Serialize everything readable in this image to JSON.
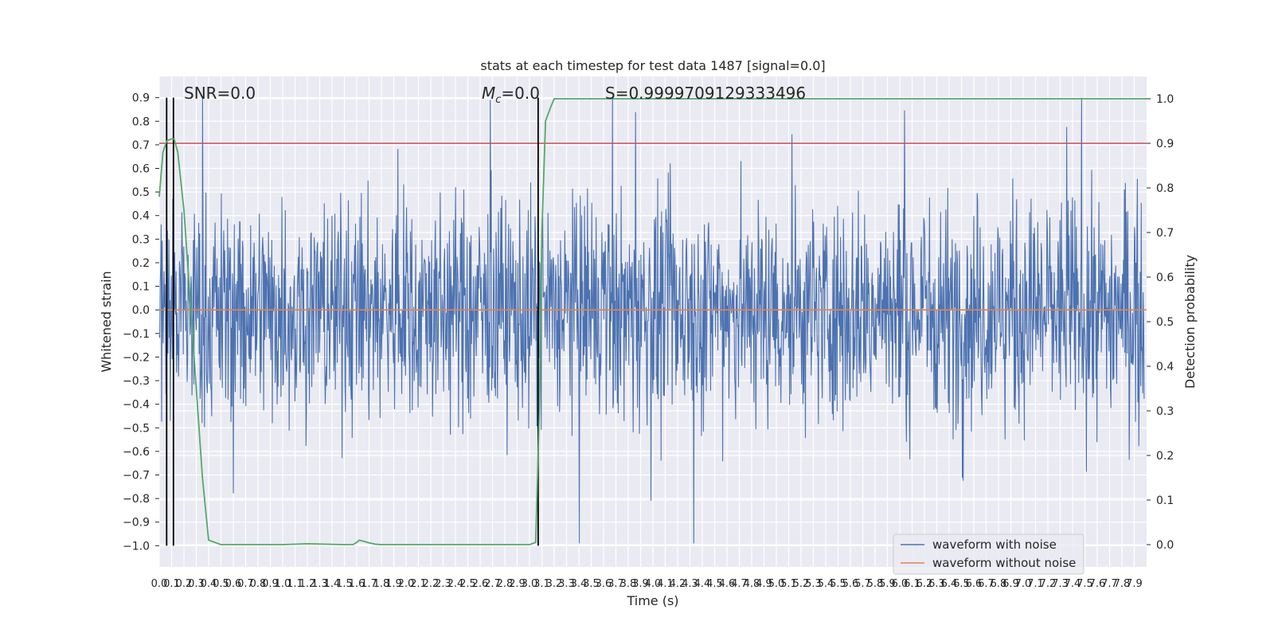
{
  "chart_data": {
    "type": "line",
    "title": "stats at each timestep for test data 1487 [signal=0.0]",
    "xlabel": "Time (s)",
    "ylabel": "Whitened strain",
    "y2label": "Detection probability",
    "xlim": [
      0.0,
      8.0
    ],
    "ylim": [
      -1.09,
      0.99
    ],
    "y2lim": [
      -0.05,
      1.05
    ],
    "x_ticks": [
      0.0,
      0.1,
      0.2,
      0.3,
      0.4,
      0.5,
      0.6,
      0.7,
      0.8,
      0.9,
      1.0,
      1.1,
      1.2,
      1.3,
      1.4,
      1.5,
      1.6,
      1.7,
      1.8,
      1.9,
      2.0,
      2.1,
      2.2,
      2.3,
      2.4,
      2.5,
      2.6,
      2.7,
      2.8,
      2.9,
      3.0,
      3.1,
      3.2,
      3.3,
      3.4,
      3.5,
      3.6,
      3.7,
      3.8,
      3.9,
      4.0,
      4.1,
      4.2,
      4.3,
      4.4,
      4.5,
      4.6,
      4.7,
      4.8,
      4.9,
      5.0,
      5.1,
      5.2,
      5.3,
      5.4,
      5.5,
      5.6,
      5.7,
      5.8,
      5.9,
      6.0,
      6.1,
      6.2,
      6.3,
      6.4,
      6.5,
      6.6,
      6.7,
      6.8,
      6.9,
      7.0,
      7.1,
      7.2,
      7.3,
      7.4,
      7.5,
      7.6,
      7.7,
      7.8,
      7.9
    ],
    "y_ticks": [
      -1.0,
      -0.9,
      -0.8,
      -0.7,
      -0.6,
      -0.5,
      -0.4,
      -0.3,
      -0.2,
      -0.1,
      0.0,
      0.1,
      0.2,
      0.3,
      0.4,
      0.5,
      0.6,
      0.7,
      0.8,
      0.9
    ],
    "y2_ticks": [
      0.0,
      0.1,
      0.2,
      0.3,
      0.4,
      0.5,
      0.6,
      0.7,
      0.8,
      0.9,
      1.0
    ],
    "grid": true,
    "legend_position": "bottom-right",
    "annotations": {
      "snr": "SNR=0.0",
      "mc_symbol": "M",
      "mc_sub": "c",
      "mc_value": "=0.0",
      "s": "S=0.9999709129333496"
    },
    "series": [
      {
        "name": "waveform with noise",
        "color": "#4c72b0",
        "kind": "noise",
        "typical_amplitude": 0.45,
        "peak_max": 0.9,
        "peak_min": -0.99,
        "samples": 2048
      },
      {
        "name": "waveform without noise",
        "color": "#dd8452",
        "kind": "constant",
        "y": 0.0
      },
      {
        "name": "detection probability",
        "color": "#55a868",
        "axis": "right",
        "x": [
          0.0,
          0.03,
          0.06,
          0.1,
          0.12,
          0.15,
          0.2,
          0.25,
          0.3,
          0.35,
          0.4,
          0.5,
          1.0,
          1.2,
          1.5,
          1.57,
          1.6,
          1.62,
          1.65,
          1.7,
          1.75,
          1.8,
          2.5,
          3.0,
          3.05,
          3.08,
          3.1,
          3.13,
          3.17,
          3.2,
          3.25,
          3.3,
          7.9,
          8.0
        ],
        "y": [
          0.78,
          0.88,
          0.905,
          0.91,
          0.91,
          0.88,
          0.75,
          0.55,
          0.35,
          0.15,
          0.01,
          0.0,
          0.0,
          0.002,
          0.0,
          0.0,
          0.005,
          0.01,
          0.008,
          0.004,
          0.001,
          0.0,
          0.0,
          0.0,
          0.005,
          0.3,
          0.7,
          0.95,
          0.98,
          1.0,
          1.0,
          1.0,
          1.0,
          1.0
        ]
      }
    ],
    "horizontal_lines": [
      {
        "axis": "right",
        "y": 0.9,
        "color": "#c44e52"
      }
    ],
    "vertical_lines": [
      {
        "x": 0.06,
        "ymin": -1.0,
        "ymax": 0.9,
        "color": "#000000"
      },
      {
        "x": 0.115,
        "ymin": -1.0,
        "ymax": 0.9,
        "color": "#000000"
      },
      {
        "x": 3.07,
        "ymin": -1.0,
        "ymax": 0.9,
        "color": "#000000"
      }
    ]
  }
}
